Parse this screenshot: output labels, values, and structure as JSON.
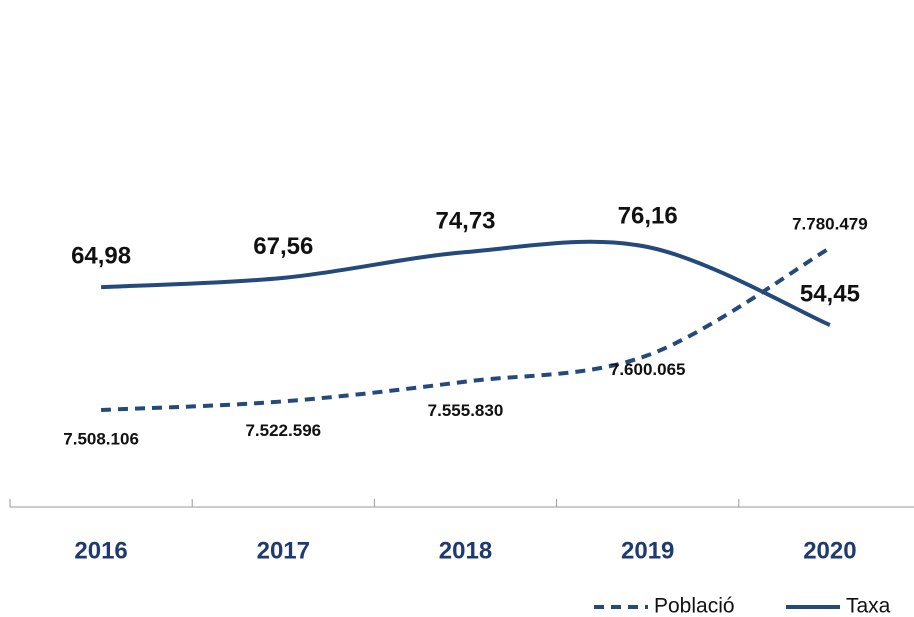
{
  "chart_data": {
    "type": "line",
    "categories": [
      "2016",
      "2017",
      "2018",
      "2019",
      "2020"
    ],
    "series": [
      {
        "name": "Població",
        "color": "#24497b",
        "dash": "dashed",
        "axis": "y2",
        "values": [
          7508106,
          7522596,
          7555830,
          7600065,
          7780479
        ],
        "value_labels": [
          "7.508.106",
          "7.522.596",
          "7.555.830",
          "7.600.065",
          "7.780.479"
        ]
      },
      {
        "name": "Taxa",
        "color": "#24497b",
        "dash": "solid",
        "values": [
          64.98,
          67.56,
          74.73,
          76.16,
          54.45
        ],
        "value_labels": [
          "64,98",
          "67,56",
          "74,73",
          "76,16",
          "54,45"
        ]
      }
    ],
    "legend": "bottom-right"
  }
}
